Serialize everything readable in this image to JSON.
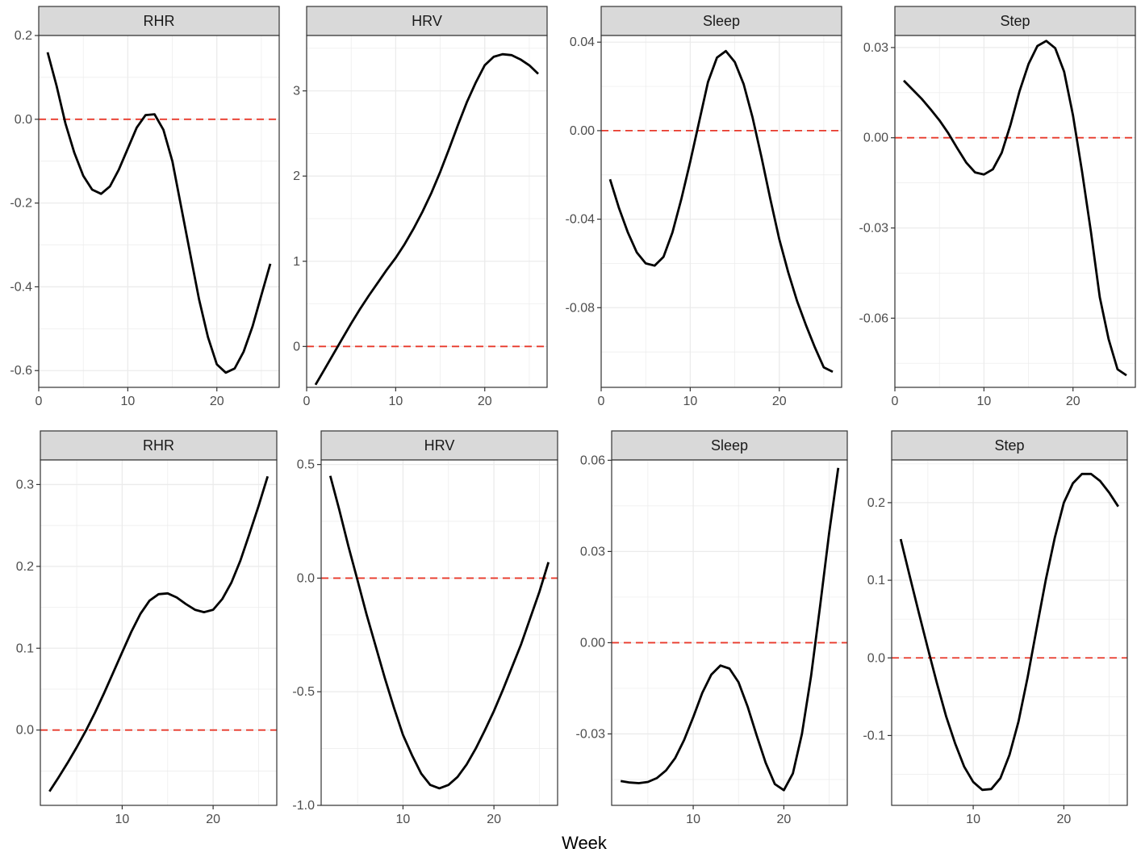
{
  "chart_data": {
    "type": "line",
    "xlabel": "Week",
    "reference_line": {
      "y": 0,
      "color": "#e8392b",
      "style": "dashed"
    },
    "line_color": "#000000",
    "grid": true,
    "panels": [
      {
        "row": 1,
        "strip": "RHR",
        "xlim": [
          0,
          27
        ],
        "ylim": [
          -0.64,
          0.2
        ],
        "x_ticks": [
          0,
          10,
          20
        ],
        "y_ticks": [
          0.2,
          0.0,
          -0.2,
          -0.4,
          -0.6
        ],
        "y_tick_labels": [
          "0.2",
          "0.0",
          "-0.2",
          "-0.4",
          "-0.6"
        ],
        "series": [
          {
            "x": [
              1,
              2,
              3,
              4,
              5,
              6,
              7,
              8,
              9,
              10,
              11,
              12,
              13,
              14,
              15,
              16,
              17,
              18,
              19,
              20,
              21,
              22,
              23,
              24,
              25,
              26
            ],
            "y": [
              0.16,
              0.08,
              -0.01,
              -0.08,
              -0.135,
              -0.168,
              -0.178,
              -0.16,
              -0.12,
              -0.07,
              -0.02,
              0.01,
              0.012,
              -0.025,
              -0.1,
              -0.21,
              -0.32,
              -0.43,
              -0.52,
              -0.585,
              -0.605,
              -0.595,
              -0.555,
              -0.495,
              -0.42,
              -0.345
            ]
          }
        ]
      },
      {
        "row": 1,
        "strip": "HRV",
        "xlim": [
          0,
          27
        ],
        "ylim": [
          -0.48,
          3.65
        ],
        "x_ticks": [
          0,
          10,
          20
        ],
        "y_ticks": [
          3,
          2,
          1,
          0
        ],
        "y_tick_labels": [
          "3",
          "2",
          "1",
          "0"
        ],
        "series": [
          {
            "x": [
              1,
              2,
              3,
              4,
              5,
              6,
              7,
              8,
              9,
              10,
              11,
              12,
              13,
              14,
              15,
              16,
              17,
              18,
              19,
              20,
              21,
              22,
              23,
              24,
              25,
              26
            ],
            "y": [
              -0.45,
              -0.27,
              -0.09,
              0.09,
              0.27,
              0.44,
              0.6,
              0.75,
              0.9,
              1.04,
              1.2,
              1.38,
              1.58,
              1.8,
              2.05,
              2.32,
              2.6,
              2.87,
              3.1,
              3.3,
              3.4,
              3.43,
              3.42,
              3.37,
              3.3,
              3.2
            ]
          }
        ]
      },
      {
        "row": 1,
        "strip": "Sleep",
        "xlim": [
          0,
          27
        ],
        "ylim": [
          -0.116,
          0.043
        ],
        "x_ticks": [
          0,
          10,
          20
        ],
        "y_ticks": [
          0.04,
          0.0,
          -0.04,
          -0.08
        ],
        "y_tick_labels": [
          "0.04",
          "0.00",
          "-0.04",
          "-0.08"
        ],
        "series": [
          {
            "x": [
              1,
              2,
              3,
              4,
              5,
              6,
              7,
              8,
              9,
              10,
              11,
              12,
              13,
              14,
              15,
              16,
              17,
              18,
              19,
              20,
              21,
              22,
              23,
              24,
              25,
              26
            ],
            "y": [
              -0.022,
              -0.035,
              -0.046,
              -0.055,
              -0.06,
              -0.061,
              -0.057,
              -0.046,
              -0.031,
              -0.014,
              0.004,
              0.022,
              0.033,
              0.036,
              0.031,
              0.021,
              0.006,
              -0.012,
              -0.031,
              -0.049,
              -0.064,
              -0.077,
              -0.088,
              -0.098,
              -0.107,
              -0.109
            ]
          }
        ]
      },
      {
        "row": 1,
        "strip": "Step",
        "xlim": [
          0,
          27
        ],
        "ylim": [
          -0.083,
          0.034
        ],
        "x_ticks": [
          0,
          10,
          20
        ],
        "y_ticks": [
          0.03,
          0.0,
          -0.03,
          -0.06
        ],
        "y_tick_labels": [
          "0.03",
          "0.00",
          "-0.03",
          "-0.06"
        ],
        "series": [
          {
            "x": [
              1,
              2,
              3,
              4,
              5,
              6,
              7,
              8,
              9,
              10,
              11,
              12,
              13,
              14,
              15,
              16,
              17,
              18,
              19,
              20,
              21,
              22,
              23,
              24,
              25,
              26
            ],
            "y": [
              0.019,
              0.016,
              0.013,
              0.0095,
              0.0058,
              0.0015,
              -0.0035,
              -0.0082,
              -0.0115,
              -0.0122,
              -0.0105,
              -0.005,
              0.0045,
              0.0155,
              0.0245,
              0.0305,
              0.0322,
              0.0298,
              0.022,
              0.0075,
              -0.011,
              -0.031,
              -0.053,
              -0.067,
              -0.077,
              -0.079
            ]
          }
        ]
      },
      {
        "row": 2,
        "strip": "Sleep",
        "xlim": [
          1,
          27
        ],
        "ylim": [
          -0.0535,
          0.0601
        ],
        "x_ticks": [
          10,
          20
        ],
        "y_ticks": [
          0.06,
          0.03,
          0.0,
          -0.03
        ],
        "y_tick_labels": [
          "0.06",
          "0.03",
          "0.00",
          "-0.03"
        ],
        "series": [
          {
            "x": [
              2,
              3,
              4,
              5,
              6,
              7,
              8,
              9,
              10,
              11,
              12,
              13,
              14,
              15,
              16,
              17,
              18,
              19,
              20,
              21,
              22,
              23,
              24,
              25,
              26
            ],
            "y": [
              -0.0455,
              -0.046,
              -0.0462,
              -0.0458,
              -0.0445,
              -0.042,
              -0.038,
              -0.032,
              -0.0245,
              -0.0165,
              -0.0105,
              -0.0075,
              -0.0085,
              -0.013,
              -0.021,
              -0.0305,
              -0.0395,
              -0.0465,
              -0.0485,
              -0.043,
              -0.03,
              -0.011,
              0.012,
              0.036,
              0.0575
            ]
          }
        ]
      },
      {
        "row": 2,
        "strip": "Step",
        "xlim": [
          1,
          27
        ],
        "ylim": [
          -0.19,
          0.255
        ],
        "x_ticks": [
          10,
          20
        ],
        "y_ticks": [
          0.2,
          0.1,
          0.0,
          -0.1
        ],
        "y_tick_labels": [
          "0.2",
          "0.1",
          "0.0",
          "-0.1"
        ],
        "series": [
          {
            "x": [
              2,
              3,
              4,
              5,
              6,
              7,
              8,
              9,
              10,
              11,
              12,
              13,
              14,
              15,
              16,
              17,
              18,
              19,
              20,
              21,
              22,
              23,
              24,
              25,
              26
            ],
            "y": [
              0.153,
              0.105,
              0.058,
              0.012,
              -0.033,
              -0.075,
              -0.11,
              -0.14,
              -0.16,
              -0.17,
              -0.169,
              -0.155,
              -0.125,
              -0.082,
              -0.025,
              0.038,
              0.1,
              0.155,
              0.2,
              0.225,
              0.237,
              0.237,
              0.228,
              0.213,
              0.195
            ]
          }
        ]
      },
      {
        "row": 2,
        "strip": "RHR",
        "xlim": [
          1,
          27
        ],
        "ylim": [
          -0.092,
          0.33
        ],
        "x_ticks": [
          10,
          20
        ],
        "y_ticks": [
          0.3,
          0.2,
          0.1,
          0.0
        ],
        "y_tick_labels": [
          "0.3",
          "0.2",
          "0.1",
          "0.0"
        ],
        "series": [
          {
            "x": [
              2,
              3,
              4,
              5,
              6,
              7,
              8,
              9,
              10,
              11,
              12,
              13,
              14,
              15,
              16,
              17,
              18,
              19,
              20,
              21,
              22,
              23,
              24,
              25,
              26
            ],
            "y": [
              -0.075,
              -0.058,
              -0.04,
              -0.021,
              -0.001,
              0.021,
              0.045,
              0.07,
              0.095,
              0.12,
              0.142,
              0.158,
              0.166,
              0.167,
              0.162,
              0.154,
              0.147,
              0.144,
              0.147,
              0.16,
              0.18,
              0.207,
              0.24,
              0.274,
              0.31
            ]
          }
        ]
      },
      {
        "row": 2,
        "strip": "HRV",
        "xlim": [
          1,
          27
        ],
        "ylim": [
          -1.0,
          0.52
        ],
        "x_ticks": [
          10,
          20
        ],
        "y_ticks": [
          0.5,
          0.0,
          -0.5,
          -1.0
        ],
        "y_tick_labels": [
          "0.5",
          "0.0",
          "-0.5",
          "-1.0"
        ],
        "series": [
          {
            "x": [
              2,
              3,
              4,
              5,
              6,
              7,
              8,
              9,
              10,
              11,
              12,
              13,
              14,
              15,
              16,
              17,
              18,
              19,
              20,
              21,
              22,
              23,
              24,
              25,
              26
            ],
            "y": [
              0.45,
              0.3,
              0.14,
              -0.01,
              -0.16,
              -0.3,
              -0.44,
              -0.57,
              -0.69,
              -0.78,
              -0.86,
              -0.91,
              -0.925,
              -0.91,
              -0.875,
              -0.82,
              -0.75,
              -0.67,
              -0.585,
              -0.49,
              -0.39,
              -0.29,
              -0.175,
              -0.06,
              0.07
            ]
          }
        ]
      }
    ]
  }
}
